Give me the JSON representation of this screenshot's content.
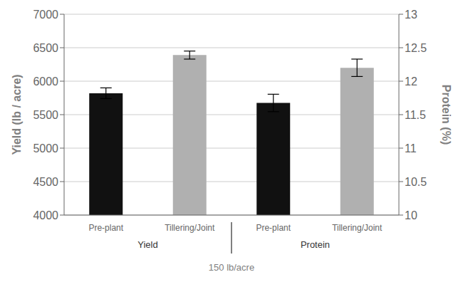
{
  "chart_data": {
    "type": "bar",
    "categories": [
      "Pre-plant",
      "Tillering/Joint",
      "Pre-plant",
      "Tillering/Joint"
    ],
    "groups": [
      "Yield",
      "Yield",
      "Protein",
      "Protein"
    ],
    "values": [
      5820,
      6390,
      5675,
      6200
    ],
    "yerr": [
      80,
      60,
      130,
      130
    ],
    "colors": [
      "#111111",
      "#b0b0b0",
      "#111111",
      "#b0b0b0"
    ],
    "xlabel": "150 lb/acre",
    "ylabel": "Yield (lb / acre)",
    "y2label": "Protein (%)",
    "ylim": [
      4000,
      7000
    ],
    "yticks": [
      4000,
      4500,
      5000,
      5500,
      6000,
      6500,
      7000
    ],
    "y2lim": [
      10,
      13
    ],
    "y2ticks": [
      10,
      10.5,
      11,
      11.5,
      12,
      12.5,
      13
    ],
    "grid": true
  }
}
